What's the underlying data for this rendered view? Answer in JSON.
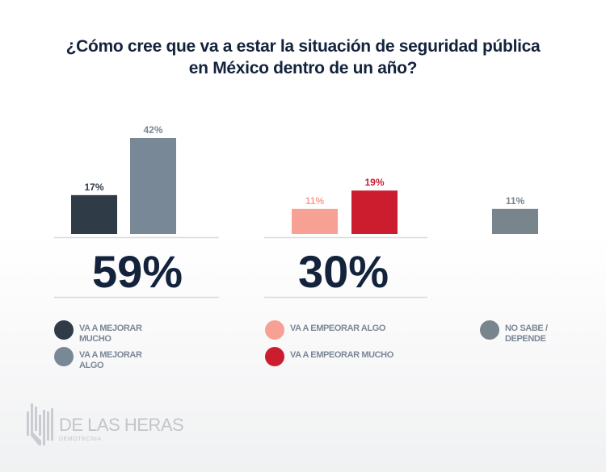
{
  "chart_data": {
    "type": "bar",
    "title": "¿Cómo cree que va a estar la situación de seguridad pública en México dentro de un año?",
    "title_lines": [
      "¿Cómo cree que va a estar la situación de seguridad pública",
      "en México dentro de un año?"
    ],
    "xlabel": "",
    "ylabel": "",
    "ylim": [
      0,
      42
    ],
    "grid": false,
    "legend_position": "bottom",
    "unit": "%",
    "groups": [
      {
        "name": "mejorar",
        "total_label": "59%",
        "total": 59,
        "bars": [
          {
            "label": "Va a mejorar mucho",
            "value": 17,
            "value_label": "17%",
            "color": "#2f3b47",
            "label_color": "#2f3b47"
          },
          {
            "label": "Va a mejorar algo",
            "value": 42,
            "value_label": "42%",
            "color": "#788897",
            "label_color": "#788897"
          }
        ]
      },
      {
        "name": "empeorar",
        "total_label": "30%",
        "total": 30,
        "bars": [
          {
            "label": "Va a empeorar algo",
            "value": 11,
            "value_label": "11%",
            "color": "#f6a194",
            "label_color": "#f6a194"
          },
          {
            "label": "Va a empeorar mucho",
            "value": 19,
            "value_label": "19%",
            "color": "#cc1d2f",
            "label_color": "#cc1d2f"
          }
        ]
      },
      {
        "name": "no-sabe",
        "total_label": null,
        "total": null,
        "bars": [
          {
            "label": "No sabe / Depende",
            "value": 11,
            "value_label": "11%",
            "color": "#78858d",
            "label_color": "#78858d"
          }
        ]
      }
    ],
    "legend": [
      {
        "label": "VA A MEJORAR MUCHO",
        "color": "#2f3b47"
      },
      {
        "label": "VA A MEJORAR ALGO",
        "color": "#788897"
      },
      {
        "label": "VA A EMPEORAR ALGO",
        "color": "#f6a194"
      },
      {
        "label": "VA A EMPEORAR MUCHO",
        "color": "#cc1d2f"
      },
      {
        "label": "NO SABE / DEPENDE",
        "color": "#78858d"
      }
    ]
  },
  "branding": {
    "logo_name": "DE LAS HERAS",
    "logo_sub": "DEMOTECNIA"
  },
  "colors": {
    "title": "#13233c",
    "legend_text": "#7b8796",
    "divider": "#d8dadc"
  }
}
